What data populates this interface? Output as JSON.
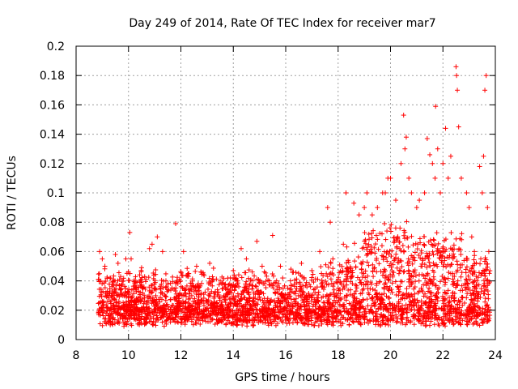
{
  "chart_data": {
    "type": "scatter",
    "title": "Day 249 of 2014, Rate Of TEC Index for receiver mar7",
    "xlabel": "GPS time / hours",
    "ylabel": "ROTI / TECUs",
    "xlim": [
      8,
      24
    ],
    "ylim": [
      0,
      0.2
    ],
    "x_ticks": [
      8,
      10,
      12,
      14,
      16,
      18,
      20,
      22,
      24
    ],
    "y_ticks": [
      0,
      0.02,
      0.04,
      0.06,
      0.08,
      0.1,
      0.12,
      0.14,
      0.16,
      0.18,
      0.2
    ],
    "x_tick_labels": [
      "8",
      "10",
      "12",
      "14",
      "16",
      "18",
      "20",
      "22",
      "24"
    ],
    "y_tick_labels": [
      "0",
      "0.02",
      "0.04",
      "0.06",
      "0.08",
      "0.1",
      "0.12",
      "0.14",
      "0.16",
      "0.18",
      "0.2"
    ],
    "grid": true,
    "marker": "+",
    "marker_color": "#ff0000",
    "series": [
      {
        "name": "ROTI",
        "points": [
          [
            8.85,
            0.041
          ],
          [
            8.9,
            0.06
          ],
          [
            9.0,
            0.055
          ],
          [
            9.1,
            0.05
          ],
          [
            9.3,
            0.042
          ],
          [
            9.5,
            0.058
          ],
          [
            9.6,
            0.052
          ],
          [
            9.9,
            0.055
          ],
          [
            10.05,
            0.073
          ],
          [
            10.1,
            0.055
          ],
          [
            10.5,
            0.049
          ],
          [
            10.8,
            0.062
          ],
          [
            10.9,
            0.065
          ],
          [
            11.1,
            0.07
          ],
          [
            11.3,
            0.06
          ],
          [
            11.8,
            0.079
          ],
          [
            12.1,
            0.06
          ],
          [
            12.3,
            0.045
          ],
          [
            12.6,
            0.05
          ],
          [
            13.1,
            0.052
          ],
          [
            13.5,
            0.04
          ],
          [
            14.0,
            0.047
          ],
          [
            14.3,
            0.062
          ],
          [
            14.5,
            0.055
          ],
          [
            14.9,
            0.067
          ],
          [
            15.1,
            0.05
          ],
          [
            15.5,
            0.071
          ],
          [
            15.8,
            0.05
          ],
          [
            16.2,
            0.048
          ],
          [
            16.6,
            0.052
          ],
          [
            17.0,
            0.047
          ],
          [
            17.3,
            0.06
          ],
          [
            17.6,
            0.09
          ],
          [
            17.7,
            0.08
          ],
          [
            17.8,
            0.055
          ],
          [
            18.2,
            0.065
          ],
          [
            18.3,
            0.1
          ],
          [
            18.6,
            0.093
          ],
          [
            18.8,
            0.085
          ],
          [
            19.0,
            0.09
          ],
          [
            19.1,
            0.1
          ],
          [
            19.3,
            0.085
          ],
          [
            19.5,
            0.09
          ],
          [
            19.7,
            0.1
          ],
          [
            19.8,
            0.1
          ],
          [
            19.9,
            0.11
          ],
          [
            20.0,
            0.11
          ],
          [
            20.2,
            0.095
          ],
          [
            20.4,
            0.12
          ],
          [
            20.5,
            0.153
          ],
          [
            20.55,
            0.13
          ],
          [
            20.6,
            0.138
          ],
          [
            20.7,
            0.11
          ],
          [
            20.8,
            0.1
          ],
          [
            21.0,
            0.09
          ],
          [
            21.1,
            0.095
          ],
          [
            21.3,
            0.1
          ],
          [
            21.4,
            0.137
          ],
          [
            21.5,
            0.126
          ],
          [
            21.6,
            0.12
          ],
          [
            21.7,
            0.11
          ],
          [
            21.72,
            0.159
          ],
          [
            21.8,
            0.13
          ],
          [
            21.9,
            0.1
          ],
          [
            22.0,
            0.12
          ],
          [
            22.1,
            0.144
          ],
          [
            22.2,
            0.11
          ],
          [
            22.3,
            0.125
          ],
          [
            22.5,
            0.186
          ],
          [
            22.52,
            0.18
          ],
          [
            22.55,
            0.17
          ],
          [
            22.6,
            0.145
          ],
          [
            22.7,
            0.11
          ],
          [
            22.9,
            0.1
          ],
          [
            23.0,
            0.09
          ],
          [
            23.1,
            0.07
          ],
          [
            23.2,
            0.06
          ],
          [
            23.4,
            0.118
          ],
          [
            23.5,
            0.1
          ],
          [
            23.55,
            0.125
          ],
          [
            23.6,
            0.17
          ],
          [
            23.65,
            0.18
          ],
          [
            23.7,
            0.09
          ],
          [
            23.75,
            0.06
          ],
          [
            9.2,
            0.03
          ],
          [
            10.3,
            0.028
          ],
          [
            11.5,
            0.034
          ],
          [
            12.8,
            0.026
          ],
          [
            13.8,
            0.031
          ],
          [
            15.0,
            0.029
          ],
          [
            16.0,
            0.027
          ],
          [
            17.0,
            0.03
          ],
          [
            18.0,
            0.035
          ],
          [
            19.2,
            0.06
          ],
          [
            20.3,
            0.055
          ],
          [
            21.2,
            0.05
          ],
          [
            22.3,
            0.045
          ],
          [
            23.3,
            0.04
          ]
        ]
      }
    ]
  }
}
